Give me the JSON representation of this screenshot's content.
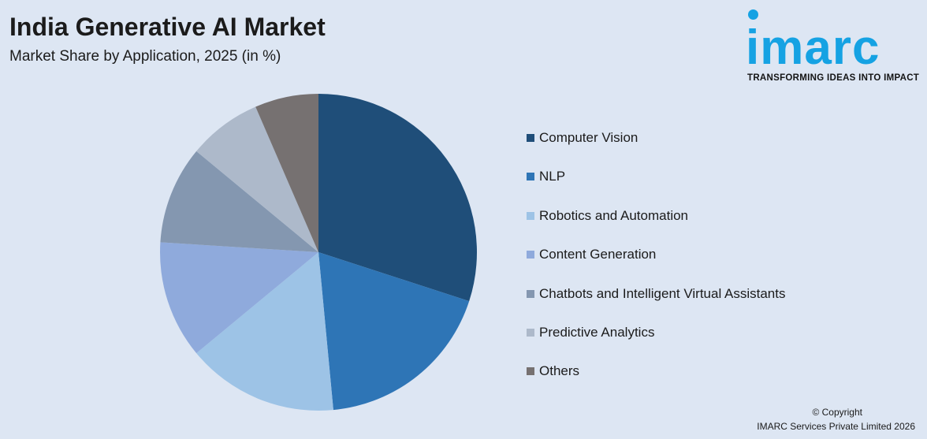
{
  "header": {
    "title": "India Generative AI Market",
    "subtitle": "Market Share by Application, 2025 (in %)"
  },
  "logo": {
    "wordmark": "imarc",
    "tagline": "TRANSFORMING IDEAS INTO IMPACT",
    "color": "#15a2e3"
  },
  "chart_data": {
    "type": "pie",
    "title": "India Generative AI Market",
    "subtitle": "Market Share by Application, 2025 (in %)",
    "categories": [
      "Computer Vision",
      "NLP",
      "Robotics and Automation",
      "Content Generation",
      "Chatbots and Intelligent Virtual Assistants",
      "Predictive Analytics",
      "Others"
    ],
    "values": [
      30.0,
      18.5,
      15.5,
      12.0,
      10.0,
      7.5,
      6.5
    ],
    "colors": [
      "#1f4e79",
      "#2e75b6",
      "#9dc3e6",
      "#8faadc",
      "#8497b0",
      "#adb9ca",
      "#767171"
    ],
    "legend_position": "right",
    "start_angle_deg": 0,
    "direction": "clockwise"
  },
  "footer": {
    "copyright": "© Copyright",
    "company": "IMARC Services Private Limited 2026"
  }
}
